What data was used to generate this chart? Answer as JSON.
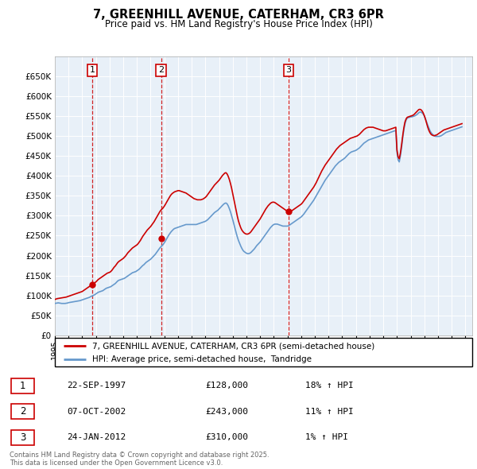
{
  "title_line1": "7, GREENHILL AVENUE, CATERHAM, CR3 6PR",
  "title_line2": "Price paid vs. HM Land Registry's House Price Index (HPI)",
  "ylim": [
    0,
    700000
  ],
  "yticks": [
    0,
    50000,
    100000,
    150000,
    200000,
    250000,
    300000,
    350000,
    400000,
    450000,
    500000,
    550000,
    600000,
    650000
  ],
  "xlim_start": 1995.0,
  "xlim_end": 2025.5,
  "hpi_line_color": "#6699cc",
  "price_color": "#cc0000",
  "plot_bg_color": "#e8f0f8",
  "grid_color": "#ffffff",
  "legend_label1": "7, GREENHILL AVENUE, CATERHAM, CR3 6PR (semi-detached house)",
  "legend_label2": "HPI: Average price, semi-detached house,  Tandridge",
  "transactions": [
    {
      "num": 1,
      "date": "22-SEP-1997",
      "price": 128000,
      "hpi_pct": "18%",
      "x_year": 1997.73
    },
    {
      "num": 2,
      "date": "07-OCT-2002",
      "price": 243000,
      "hpi_pct": "11%",
      "x_year": 2002.77
    },
    {
      "num": 3,
      "date": "24-JAN-2012",
      "price": 310000,
      "hpi_pct": "1%",
      "x_year": 2012.07
    }
  ],
  "footer_line1": "Contains HM Land Registry data © Crown copyright and database right 2025.",
  "footer_line2": "This data is licensed under the Open Government Licence v3.0.",
  "hpi_data_x": [
    1995.0,
    1995.083,
    1995.167,
    1995.25,
    1995.333,
    1995.417,
    1995.5,
    1995.583,
    1995.667,
    1995.75,
    1995.833,
    1995.917,
    1996.0,
    1996.083,
    1996.167,
    1996.25,
    1996.333,
    1996.417,
    1996.5,
    1996.583,
    1996.667,
    1996.75,
    1996.833,
    1996.917,
    1997.0,
    1997.083,
    1997.167,
    1997.25,
    1997.333,
    1997.417,
    1997.5,
    1997.583,
    1997.667,
    1997.75,
    1997.833,
    1997.917,
    1998.0,
    1998.083,
    1998.167,
    1998.25,
    1998.333,
    1998.417,
    1998.5,
    1998.583,
    1998.667,
    1998.75,
    1998.833,
    1998.917,
    1999.0,
    1999.083,
    1999.167,
    1999.25,
    1999.333,
    1999.417,
    1999.5,
    1999.583,
    1999.667,
    1999.75,
    1999.833,
    1999.917,
    2000.0,
    2000.083,
    2000.167,
    2000.25,
    2000.333,
    2000.417,
    2000.5,
    2000.583,
    2000.667,
    2000.75,
    2000.833,
    2000.917,
    2001.0,
    2001.083,
    2001.167,
    2001.25,
    2001.333,
    2001.417,
    2001.5,
    2001.583,
    2001.667,
    2001.75,
    2001.833,
    2001.917,
    2002.0,
    2002.083,
    2002.167,
    2002.25,
    2002.333,
    2002.417,
    2002.5,
    2002.583,
    2002.667,
    2002.75,
    2002.833,
    2002.917,
    2003.0,
    2003.083,
    2003.167,
    2003.25,
    2003.333,
    2003.417,
    2003.5,
    2003.583,
    2003.667,
    2003.75,
    2003.833,
    2003.917,
    2004.0,
    2004.083,
    2004.167,
    2004.25,
    2004.333,
    2004.417,
    2004.5,
    2004.583,
    2004.667,
    2004.75,
    2004.833,
    2004.917,
    2005.0,
    2005.083,
    2005.167,
    2005.25,
    2005.333,
    2005.417,
    2005.5,
    2005.583,
    2005.667,
    2005.75,
    2005.833,
    2005.917,
    2006.0,
    2006.083,
    2006.167,
    2006.25,
    2006.333,
    2006.417,
    2006.5,
    2006.583,
    2006.667,
    2006.75,
    2006.833,
    2006.917,
    2007.0,
    2007.083,
    2007.167,
    2007.25,
    2007.333,
    2007.417,
    2007.5,
    2007.583,
    2007.667,
    2007.75,
    2007.833,
    2007.917,
    2008.0,
    2008.083,
    2008.167,
    2008.25,
    2008.333,
    2008.417,
    2008.5,
    2008.583,
    2008.667,
    2008.75,
    2008.833,
    2008.917,
    2009.0,
    2009.083,
    2009.167,
    2009.25,
    2009.333,
    2009.417,
    2009.5,
    2009.583,
    2009.667,
    2009.75,
    2009.833,
    2009.917,
    2010.0,
    2010.083,
    2010.167,
    2010.25,
    2010.333,
    2010.417,
    2010.5,
    2010.583,
    2010.667,
    2010.75,
    2010.833,
    2010.917,
    2011.0,
    2011.083,
    2011.167,
    2011.25,
    2011.333,
    2011.417,
    2011.5,
    2011.583,
    2011.667,
    2011.75,
    2011.833,
    2011.917,
    2012.0,
    2012.083,
    2012.167,
    2012.25,
    2012.333,
    2012.417,
    2012.5,
    2012.583,
    2012.667,
    2012.75,
    2012.833,
    2012.917,
    2013.0,
    2013.083,
    2013.167,
    2013.25,
    2013.333,
    2013.417,
    2013.5,
    2013.583,
    2013.667,
    2013.75,
    2013.833,
    2013.917,
    2014.0,
    2014.083,
    2014.167,
    2014.25,
    2014.333,
    2014.417,
    2014.5,
    2014.583,
    2014.667,
    2014.75,
    2014.833,
    2014.917,
    2015.0,
    2015.083,
    2015.167,
    2015.25,
    2015.333,
    2015.417,
    2015.5,
    2015.583,
    2015.667,
    2015.75,
    2015.833,
    2015.917,
    2016.0,
    2016.083,
    2016.167,
    2016.25,
    2016.333,
    2016.417,
    2016.5,
    2016.583,
    2016.667,
    2016.75,
    2016.833,
    2016.917,
    2017.0,
    2017.083,
    2017.167,
    2017.25,
    2017.333,
    2017.417,
    2017.5,
    2017.583,
    2017.667,
    2017.75,
    2017.833,
    2017.917,
    2018.0,
    2018.083,
    2018.167,
    2018.25,
    2018.333,
    2018.417,
    2018.5,
    2018.583,
    2018.667,
    2018.75,
    2018.833,
    2018.917,
    2019.0,
    2019.083,
    2019.167,
    2019.25,
    2019.333,
    2019.417,
    2019.5,
    2019.583,
    2019.667,
    2019.75,
    2019.833,
    2019.917,
    2020.0,
    2020.083,
    2020.167,
    2020.25,
    2020.333,
    2020.417,
    2020.5,
    2020.583,
    2020.667,
    2020.75,
    2020.833,
    2020.917,
    2021.0,
    2021.083,
    2021.167,
    2021.25,
    2021.333,
    2021.417,
    2021.5,
    2021.583,
    2021.667,
    2021.75,
    2021.833,
    2021.917,
    2022.0,
    2022.083,
    2022.167,
    2022.25,
    2022.333,
    2022.417,
    2022.5,
    2022.583,
    2022.667,
    2022.75,
    2022.833,
    2022.917,
    2023.0,
    2023.083,
    2023.167,
    2023.25,
    2023.333,
    2023.417,
    2023.5,
    2023.583,
    2023.667,
    2023.75,
    2023.833,
    2023.917,
    2024.0,
    2024.083,
    2024.167,
    2024.25,
    2024.333,
    2024.417,
    2024.5,
    2024.583,
    2024.667,
    2024.75
  ],
  "hpi_data_y": [
    80000,
    80500,
    81000,
    81500,
    81000,
    80500,
    80000,
    80000,
    80000,
    80000,
    80500,
    81000,
    82000,
    82500,
    83000,
    83500,
    84000,
    84500,
    85000,
    85500,
    86000,
    86500,
    87000,
    88000,
    89000,
    90000,
    91000,
    92000,
    93000,
    94000,
    95000,
    96500,
    98000,
    99000,
    100500,
    102000,
    104000,
    106000,
    108000,
    109000,
    110000,
    111000,
    112000,
    114000,
    116000,
    118000,
    119000,
    120000,
    121000,
    122000,
    124000,
    126000,
    128000,
    130000,
    133000,
    136000,
    138000,
    139000,
    140000,
    141000,
    142000,
    143000,
    145000,
    147000,
    149000,
    151000,
    153000,
    155000,
    157000,
    158000,
    159000,
    160000,
    162000,
    164000,
    166000,
    169000,
    172000,
    175000,
    177000,
    180000,
    183000,
    185000,
    187000,
    189000,
    191000,
    194000,
    197000,
    200000,
    203000,
    207000,
    211000,
    215000,
    219000,
    222000,
    225000,
    228000,
    232000,
    237000,
    242000,
    247000,
    252000,
    256000,
    260000,
    263000,
    266000,
    268000,
    269000,
    270000,
    271000,
    272000,
    273000,
    274000,
    275000,
    276000,
    277000,
    278000,
    278000,
    278000,
    278000,
    278000,
    278000,
    278000,
    278000,
    278000,
    278000,
    279000,
    280000,
    281000,
    282000,
    283000,
    284000,
    285000,
    286000,
    288000,
    290000,
    293000,
    296000,
    299000,
    302000,
    305000,
    308000,
    310000,
    312000,
    314000,
    317000,
    320000,
    323000,
    326000,
    329000,
    331000,
    332000,
    330000,
    325000,
    318000,
    310000,
    300000,
    290000,
    279000,
    268000,
    257000,
    247000,
    238000,
    231000,
    224000,
    218000,
    213000,
    210000,
    208000,
    206000,
    205000,
    205000,
    206000,
    208000,
    211000,
    214000,
    217000,
    221000,
    225000,
    228000,
    231000,
    234000,
    238000,
    242000,
    246000,
    250000,
    254000,
    258000,
    262000,
    266000,
    270000,
    273000,
    276000,
    278000,
    279000,
    279000,
    279000,
    278000,
    277000,
    276000,
    275000,
    274000,
    274000,
    274000,
    274000,
    274000,
    275000,
    277000,
    279000,
    281000,
    283000,
    285000,
    287000,
    289000,
    291000,
    293000,
    295000,
    297000,
    300000,
    303000,
    307000,
    311000,
    315000,
    319000,
    323000,
    327000,
    331000,
    335000,
    339000,
    344000,
    349000,
    354000,
    359000,
    364000,
    369000,
    374000,
    379000,
    384000,
    389000,
    393000,
    397000,
    401000,
    405000,
    409000,
    413000,
    417000,
    421000,
    425000,
    428000,
    431000,
    434000,
    436000,
    438000,
    440000,
    442000,
    444000,
    447000,
    450000,
    453000,
    456000,
    458000,
    460000,
    461000,
    462000,
    463000,
    464000,
    466000,
    468000,
    470000,
    473000,
    476000,
    479000,
    482000,
    484000,
    486000,
    488000,
    490000,
    491000,
    492000,
    493000,
    494000,
    495000,
    496000,
    497000,
    498000,
    499000,
    500000,
    501000,
    502000,
    503000,
    504000,
    505000,
    506000,
    507000,
    508000,
    509000,
    510000,
    511000,
    512000,
    513000,
    514000,
    460000,
    440000,
    435000,
    450000,
    470000,
    495000,
    515000,
    530000,
    540000,
    545000,
    546000,
    547000,
    548000,
    548000,
    549000,
    550000,
    551000,
    553000,
    555000,
    558000,
    560000,
    560000,
    558000,
    555000,
    550000,
    543000,
    535000,
    527000,
    520000,
    513000,
    508000,
    505000,
    502000,
    500000,
    499000,
    499000,
    499000,
    499000,
    500000,
    501000,
    503000,
    505000,
    507000,
    509000,
    510000,
    511000,
    512000,
    513000,
    514000,
    515000,
    516000,
    517000,
    518000,
    519000,
    520000,
    521000,
    522000,
    523000
  ],
  "price_data_x": [
    1995.0,
    1995.083,
    1995.167,
    1995.25,
    1995.333,
    1995.417,
    1995.5,
    1995.583,
    1995.667,
    1995.75,
    1995.833,
    1995.917,
    1996.0,
    1996.083,
    1996.167,
    1996.25,
    1996.333,
    1996.417,
    1996.5,
    1996.583,
    1996.667,
    1996.75,
    1996.833,
    1996.917,
    1997.0,
    1997.083,
    1997.167,
    1997.25,
    1997.333,
    1997.417,
    1997.5,
    1997.583,
    1997.667,
    1997.75,
    1997.833,
    1997.917,
    1998.0,
    1998.083,
    1998.167,
    1998.25,
    1998.333,
    1998.417,
    1998.5,
    1998.583,
    1998.667,
    1998.75,
    1998.833,
    1998.917,
    1999.0,
    1999.083,
    1999.167,
    1999.25,
    1999.333,
    1999.417,
    1999.5,
    1999.583,
    1999.667,
    1999.75,
    1999.833,
    1999.917,
    2000.0,
    2000.083,
    2000.167,
    2000.25,
    2000.333,
    2000.417,
    2000.5,
    2000.583,
    2000.667,
    2000.75,
    2000.833,
    2000.917,
    2001.0,
    2001.083,
    2001.167,
    2001.25,
    2001.333,
    2001.417,
    2001.5,
    2001.583,
    2001.667,
    2001.75,
    2001.833,
    2001.917,
    2002.0,
    2002.083,
    2002.167,
    2002.25,
    2002.333,
    2002.417,
    2002.5,
    2002.583,
    2002.667,
    2002.75,
    2002.833,
    2002.917,
    2003.0,
    2003.083,
    2003.167,
    2003.25,
    2003.333,
    2003.417,
    2003.5,
    2003.583,
    2003.667,
    2003.75,
    2003.833,
    2003.917,
    2004.0,
    2004.083,
    2004.167,
    2004.25,
    2004.333,
    2004.417,
    2004.5,
    2004.583,
    2004.667,
    2004.75,
    2004.833,
    2004.917,
    2005.0,
    2005.083,
    2005.167,
    2005.25,
    2005.333,
    2005.417,
    2005.5,
    2005.583,
    2005.667,
    2005.75,
    2005.833,
    2005.917,
    2006.0,
    2006.083,
    2006.167,
    2006.25,
    2006.333,
    2006.417,
    2006.5,
    2006.583,
    2006.667,
    2006.75,
    2006.833,
    2006.917,
    2007.0,
    2007.083,
    2007.167,
    2007.25,
    2007.333,
    2007.417,
    2007.5,
    2007.583,
    2007.667,
    2007.75,
    2007.833,
    2007.917,
    2008.0,
    2008.083,
    2008.167,
    2008.25,
    2008.333,
    2008.417,
    2008.5,
    2008.583,
    2008.667,
    2008.75,
    2008.833,
    2008.917,
    2009.0,
    2009.083,
    2009.167,
    2009.25,
    2009.333,
    2009.417,
    2009.5,
    2009.583,
    2009.667,
    2009.75,
    2009.833,
    2009.917,
    2010.0,
    2010.083,
    2010.167,
    2010.25,
    2010.333,
    2010.417,
    2010.5,
    2010.583,
    2010.667,
    2010.75,
    2010.833,
    2010.917,
    2011.0,
    2011.083,
    2011.167,
    2011.25,
    2011.333,
    2011.417,
    2011.5,
    2011.583,
    2011.667,
    2011.75,
    2011.833,
    2011.917,
    2012.0,
    2012.083,
    2012.167,
    2012.25,
    2012.333,
    2012.417,
    2012.5,
    2012.583,
    2012.667,
    2012.75,
    2012.833,
    2012.917,
    2013.0,
    2013.083,
    2013.167,
    2013.25,
    2013.333,
    2013.417,
    2013.5,
    2013.583,
    2013.667,
    2013.75,
    2013.833,
    2013.917,
    2014.0,
    2014.083,
    2014.167,
    2014.25,
    2014.333,
    2014.417,
    2014.5,
    2014.583,
    2014.667,
    2014.75,
    2014.833,
    2014.917,
    2015.0,
    2015.083,
    2015.167,
    2015.25,
    2015.333,
    2015.417,
    2015.5,
    2015.583,
    2015.667,
    2015.75,
    2015.833,
    2015.917,
    2016.0,
    2016.083,
    2016.167,
    2016.25,
    2016.333,
    2016.417,
    2016.5,
    2016.583,
    2016.667,
    2016.75,
    2016.833,
    2016.917,
    2017.0,
    2017.083,
    2017.167,
    2017.25,
    2017.333,
    2017.417,
    2017.5,
    2017.583,
    2017.667,
    2017.75,
    2017.833,
    2017.917,
    2018.0,
    2018.083,
    2018.167,
    2018.25,
    2018.333,
    2018.417,
    2018.5,
    2018.583,
    2018.667,
    2018.75,
    2018.833,
    2018.917,
    2019.0,
    2019.083,
    2019.167,
    2019.25,
    2019.333,
    2019.417,
    2019.5,
    2019.583,
    2019.667,
    2019.75,
    2019.833,
    2019.917,
    2020.0,
    2020.083,
    2020.167,
    2020.25,
    2020.333,
    2020.417,
    2020.5,
    2020.583,
    2020.667,
    2020.75,
    2020.833,
    2020.917,
    2021.0,
    2021.083,
    2021.167,
    2021.25,
    2021.333,
    2021.417,
    2021.5,
    2021.583,
    2021.667,
    2021.75,
    2021.833,
    2021.917,
    2022.0,
    2022.083,
    2022.167,
    2022.25,
    2022.333,
    2022.417,
    2022.5,
    2022.583,
    2022.667,
    2022.75,
    2022.833,
    2022.917,
    2023.0,
    2023.083,
    2023.167,
    2023.25,
    2023.333,
    2023.417,
    2023.5,
    2023.583,
    2023.667,
    2023.75,
    2023.833,
    2023.917,
    2024.0,
    2024.083,
    2024.167,
    2024.25,
    2024.333,
    2024.417,
    2024.5,
    2024.583,
    2024.667,
    2024.75
  ],
  "price_data_y": [
    90000,
    91000,
    92000,
    92500,
    93000,
    93500,
    94000,
    94500,
    95000,
    95500,
    96000,
    97000,
    98000,
    99000,
    100000,
    101000,
    102000,
    103000,
    104000,
    105000,
    106000,
    107000,
    108000,
    109000,
    110000,
    112000,
    114000,
    116000,
    118000,
    120000,
    122000,
    124000,
    126000,
    128000,
    130000,
    132000,
    134000,
    137000,
    140000,
    142000,
    144000,
    146000,
    148000,
    150000,
    152000,
    154000,
    156000,
    157000,
    158000,
    160000,
    163000,
    167000,
    171000,
    174000,
    178000,
    182000,
    185000,
    187000,
    189000,
    191000,
    193000,
    196000,
    199000,
    203000,
    207000,
    210000,
    213000,
    216000,
    219000,
    221000,
    223000,
    225000,
    227000,
    230000,
    234000,
    238000,
    243000,
    248000,
    252000,
    256000,
    260000,
    264000,
    267000,
    270000,
    273000,
    277000,
    281000,
    285000,
    290000,
    295000,
    300000,
    305000,
    310000,
    314000,
    317000,
    320000,
    324000,
    329000,
    334000,
    339000,
    344000,
    349000,
    353000,
    356000,
    358000,
    360000,
    361000,
    362000,
    363000,
    363000,
    362000,
    361000,
    360000,
    359000,
    358000,
    357000,
    355000,
    353000,
    351000,
    349000,
    347000,
    345000,
    343000,
    342000,
    341000,
    340000,
    340000,
    340000,
    340000,
    341000,
    342000,
    344000,
    346000,
    349000,
    353000,
    357000,
    361000,
    365000,
    369000,
    373000,
    377000,
    380000,
    383000,
    386000,
    389000,
    393000,
    397000,
    401000,
    404000,
    407000,
    408000,
    405000,
    399000,
    391000,
    381000,
    369000,
    355000,
    340000,
    326000,
    312000,
    299000,
    287000,
    278000,
    270000,
    264000,
    260000,
    257000,
    255000,
    254000,
    254000,
    255000,
    257000,
    260000,
    264000,
    268000,
    272000,
    276000,
    280000,
    284000,
    288000,
    292000,
    297000,
    302000,
    307000,
    312000,
    317000,
    321000,
    325000,
    328000,
    331000,
    333000,
    334000,
    334000,
    333000,
    331000,
    329000,
    327000,
    325000,
    323000,
    321000,
    319000,
    317000,
    315000,
    313000,
    311000,
    310000,
    310000,
    311000,
    313000,
    315000,
    317000,
    319000,
    321000,
    323000,
    325000,
    327000,
    329000,
    332000,
    336000,
    340000,
    344000,
    348000,
    352000,
    356000,
    360000,
    364000,
    368000,
    372000,
    377000,
    382000,
    388000,
    394000,
    400000,
    406000,
    412000,
    417000,
    422000,
    427000,
    431000,
    435000,
    439000,
    443000,
    447000,
    451000,
    455000,
    459000,
    463000,
    467000,
    470000,
    473000,
    476000,
    478000,
    480000,
    482000,
    484000,
    486000,
    488000,
    490000,
    492000,
    494000,
    495000,
    496000,
    497000,
    498000,
    499000,
    500000,
    502000,
    504000,
    507000,
    510000,
    513000,
    516000,
    518000,
    520000,
    521000,
    522000,
    522000,
    522000,
    522000,
    522000,
    521000,
    520000,
    519000,
    518000,
    517000,
    516000,
    515000,
    514000,
    513000,
    513000,
    513000,
    514000,
    515000,
    516000,
    517000,
    518000,
    519000,
    520000,
    521000,
    522000,
    465000,
    448000,
    443000,
    457000,
    477000,
    500000,
    520000,
    535000,
    543000,
    547000,
    548000,
    549000,
    550000,
    551000,
    552000,
    554000,
    557000,
    560000,
    563000,
    566000,
    567000,
    566000,
    563000,
    558000,
    551000,
    542000,
    532000,
    522000,
    514000,
    508000,
    504000,
    502000,
    501000,
    501000,
    502000,
    503000,
    505000,
    507000,
    509000,
    511000,
    513000,
    515000,
    516000,
    517000,
    518000,
    519000,
    520000,
    521000,
    522000,
    523000,
    524000,
    525000,
    526000,
    527000,
    528000,
    529000,
    530000,
    531000
  ]
}
